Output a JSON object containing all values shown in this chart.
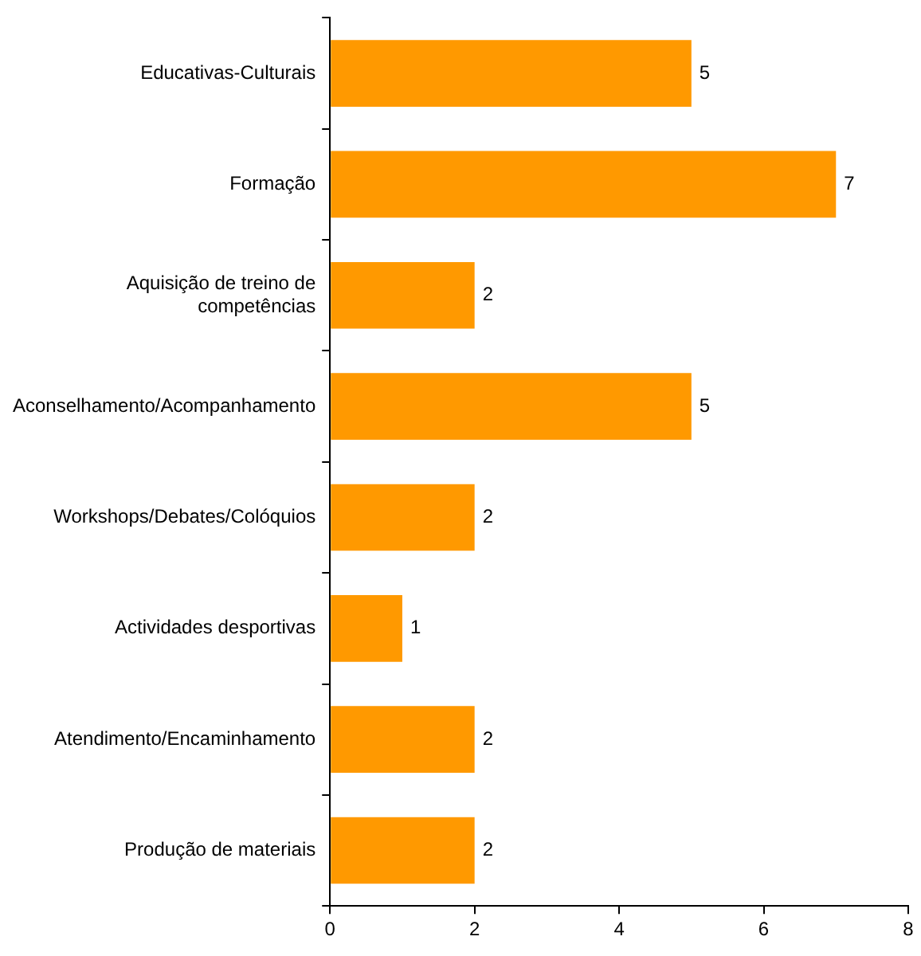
{
  "chart_data": {
    "type": "bar",
    "orientation": "horizontal",
    "categories": [
      "Educativas-Culturais",
      "Formação",
      "Aquisição de treino de competências",
      "Aconselhamento/Acompanhamento",
      "Workshops/Debates/Colóquios",
      "Actividades desportivas",
      "Atendimento/Encaminhamento",
      "Produção de materiais"
    ],
    "values": [
      5,
      7,
      2,
      5,
      2,
      1,
      2,
      2
    ],
    "color": "#ff9900",
    "xlim": [
      0,
      8
    ],
    "xticks": [
      0,
      2,
      4,
      6,
      8
    ],
    "data_labels": true,
    "grid": false,
    "legend": false
  }
}
